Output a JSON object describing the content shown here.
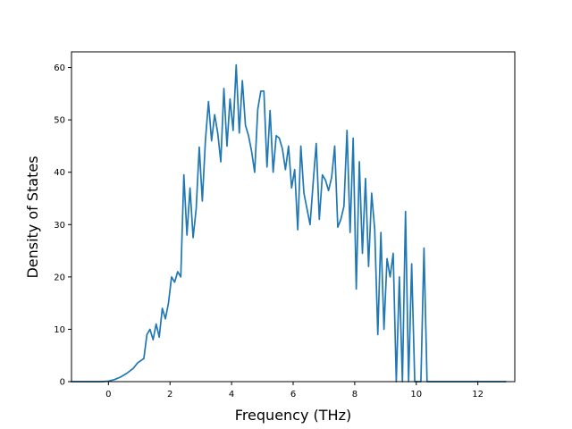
{
  "chart_data": {
    "type": "line",
    "title": "",
    "xlabel": "Frequency (THz)",
    "ylabel": "Density of States",
    "xlim": [
      -1.2,
      13.2
    ],
    "ylim": [
      0,
      63
    ],
    "xticks": [
      0,
      2,
      4,
      6,
      8,
      10,
      12
    ],
    "xtick_labels": [
      "0",
      "2",
      "4",
      "6",
      "8",
      "10",
      "12"
    ],
    "yticks": [
      0,
      10,
      20,
      30,
      40,
      50,
      60
    ],
    "ytick_labels": [
      "0",
      "10",
      "20",
      "30",
      "40",
      "50",
      "60"
    ],
    "grid": false,
    "series": [
      {
        "color": "#1f77b4",
        "x": [
          -1.2,
          -0.2,
          0.0,
          0.2,
          0.4,
          0.6,
          0.8,
          0.95,
          1.05,
          1.15,
          1.25,
          1.35,
          1.45,
          1.55,
          1.65,
          1.75,
          1.85,
          1.95,
          2.05,
          2.15,
          2.25,
          2.35,
          2.45,
          2.55,
          2.65,
          2.75,
          2.85,
          2.95,
          3.05,
          3.15,
          3.25,
          3.35,
          3.45,
          3.55,
          3.65,
          3.75,
          3.85,
          3.95,
          4.05,
          4.15,
          4.25,
          4.35,
          4.45,
          4.55,
          4.65,
          4.75,
          4.85,
          4.95,
          5.05,
          5.15,
          5.25,
          5.35,
          5.45,
          5.55,
          5.65,
          5.75,
          5.85,
          5.95,
          6.05,
          6.15,
          6.25,
          6.35,
          6.45,
          6.55,
          6.65,
          6.75,
          6.85,
          6.95,
          7.05,
          7.15,
          7.25,
          7.35,
          7.45,
          7.55,
          7.65,
          7.75,
          7.85,
          7.95,
          8.05,
          8.15,
          8.25,
          8.35,
          8.45,
          8.55,
          8.65,
          8.75,
          8.85,
          8.95,
          9.05,
          9.15,
          9.25,
          9.35,
          9.45,
          9.55,
          9.65,
          9.75,
          9.85,
          9.95,
          10.05,
          10.15,
          10.25,
          10.35,
          10.45,
          10.55,
          10.65,
          10.75,
          11.0,
          12.0,
          12.9
        ],
        "y": [
          0,
          0,
          0.1,
          0.4,
          0.9,
          1.6,
          2.5,
          3.6,
          4.0,
          4.4,
          9.0,
          10.0,
          8.0,
          11.0,
          8.5,
          14.0,
          12.0,
          15.0,
          20.0,
          19.0,
          21.0,
          20.0,
          39.5,
          28.0,
          37.0,
          27.5,
          33.0,
          44.8,
          34.5,
          46.0,
          53.5,
          46.0,
          51.0,
          47.5,
          42.0,
          56.0,
          45.0,
          54.0,
          48.0,
          60.5,
          47.5,
          57.5,
          49.0,
          47.0,
          44.0,
          40.0,
          52.0,
          55.5,
          55.5,
          41.0,
          51.8,
          40.0,
          47.0,
          46.5,
          44.5,
          40.5,
          45.0,
          37.0,
          40.5,
          29.0,
          45.0,
          36.0,
          33.0,
          30.0,
          38.0,
          45.5,
          31.0,
          39.5,
          38.5,
          36.5,
          39.0,
          45.0,
          29.5,
          31.0,
          33.5,
          48.0,
          28.5,
          46.5,
          17.7,
          42.0,
          24.5,
          38.8,
          22.0,
          36.0,
          29.0,
          9.0,
          28.5,
          10.0,
          23.5,
          20.0,
          24.5,
          0,
          20.0,
          0,
          32.5,
          0,
          22.5,
          0,
          0,
          0,
          25.5,
          0,
          0,
          0,
          0,
          0,
          0,
          0,
          0
        ]
      }
    ]
  }
}
